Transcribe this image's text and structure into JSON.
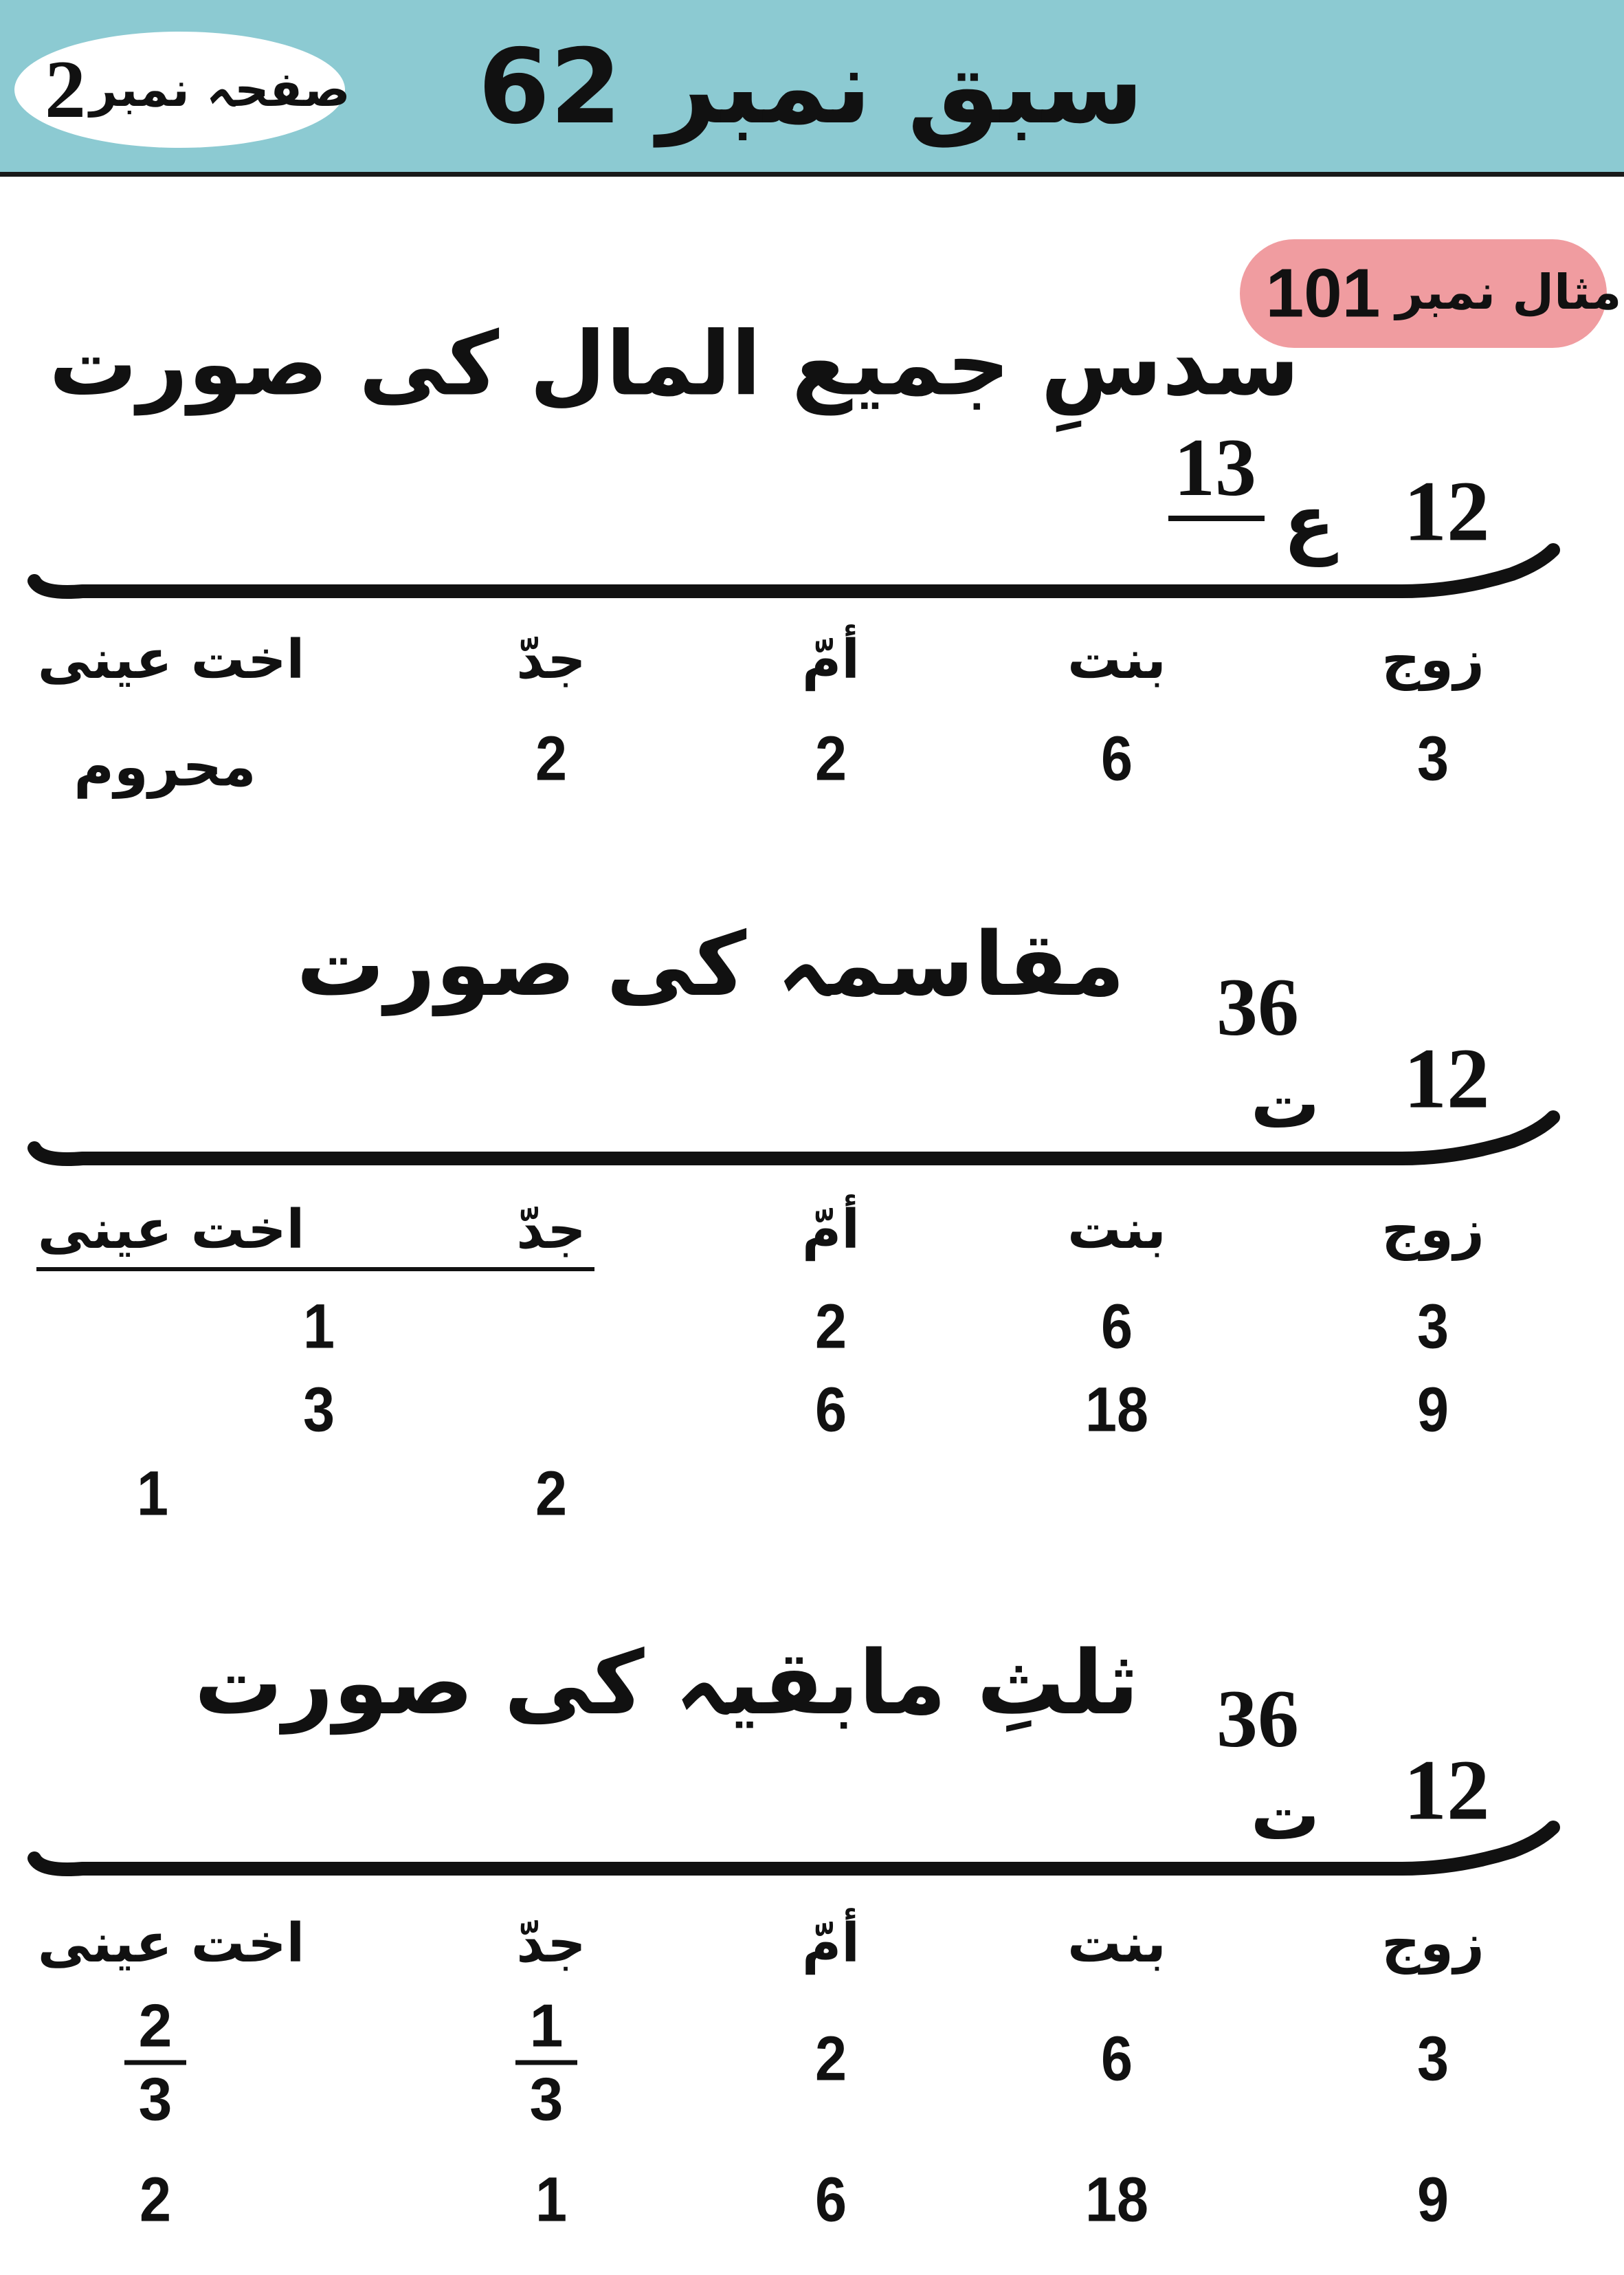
{
  "header": {
    "lesson_title": "سبق نمبر 62",
    "page_label": "صفحہ نمبر",
    "page_number": "2",
    "background_color": "#8ccad2"
  },
  "example": {
    "label": "مثال نمبر",
    "number": "101",
    "pill_color": "#f09ca0"
  },
  "columns": [
    "زوج",
    "بنت",
    "أمّ",
    "جدّ",
    "اخت عینی"
  ],
  "sections": [
    {
      "heading": "سدسِ جمیع المال کی صورت",
      "masala": "12",
      "aul_mark": "ع",
      "aul_value": "13",
      "rows": [
        [
          "3",
          "6",
          "2",
          "2",
          "محروم"
        ]
      ]
    },
    {
      "heading": "مقاسمہ کی صورت",
      "masala": "12",
      "tashih_mark": "ت",
      "tashih_value": "36",
      "rows": [
        [
          "3",
          "6",
          "2",
          "1"
        ],
        [
          "9",
          "18",
          "6",
          "3"
        ],
        [
          "2",
          "1"
        ]
      ]
    },
    {
      "heading": "ثلثِ مابقیہ کی صورت",
      "masala": "12",
      "tashih_mark": "ت",
      "tashih_value": "36",
      "fractions": {
        "jadd": [
          "1",
          "3"
        ],
        "ukht": [
          "2",
          "3"
        ]
      },
      "rows": [
        [
          "3",
          "6",
          "2"
        ],
        [
          "9",
          "18",
          "6",
          "1",
          "2"
        ]
      ]
    }
  ]
}
